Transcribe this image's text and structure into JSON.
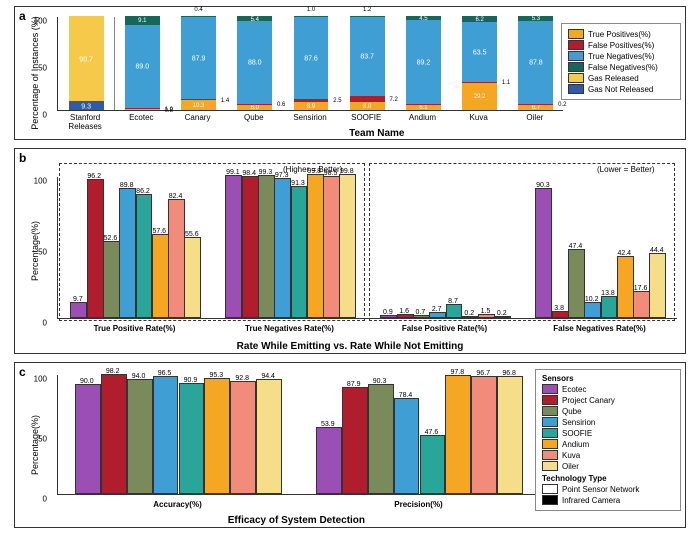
{
  "palette": {
    "tp": "#f5a623",
    "fp": "#b01e2e",
    "tn": "#3f9fd4",
    "fn": "#16675a",
    "gas": "#f7c94a",
    "nogas": "#2e5aa8"
  },
  "sensors": [
    {
      "key": "ecotec",
      "name": "Ecotec",
      "color": "#9b4fb5",
      "type": "point"
    },
    {
      "key": "canary",
      "name": "Project Canary",
      "color": "#b01e2e",
      "type": "point"
    },
    {
      "key": "qube",
      "name": "Qube",
      "color": "#7a8a5a",
      "type": "point"
    },
    {
      "key": "sensirion",
      "name": "Sensirion",
      "color": "#3f9fd4",
      "type": "point"
    },
    {
      "key": "soofie",
      "name": "SOOFIE",
      "color": "#2aa59a",
      "type": "point"
    },
    {
      "key": "andium",
      "name": "Andium",
      "color": "#f5a623",
      "type": "infrared"
    },
    {
      "key": "kuva",
      "name": "Kuva",
      "color": "#f28c7a",
      "type": "infrared"
    },
    {
      "key": "oiler",
      "name": "Oiler",
      "color": "#f5dd8a",
      "type": "infrared"
    }
  ],
  "panelA": {
    "ytitle": "Percentage of Instances (%)",
    "xtitle": "Team Name",
    "ylim": [
      0,
      100
    ],
    "ytick_step": 50,
    "stanford": {
      "label": "Stanford\nReleases",
      "gas": 90.7,
      "nogas": 9.3
    },
    "teams": [
      {
        "name": "Ecotec",
        "tp": 0.8,
        "fp": 1.0,
        "tn": 89.0,
        "fn": 9.1
      },
      {
        "name": "Canary",
        "tp": 10.3,
        "fp": 1.4,
        "tn": 87.9,
        "fn": 0.4
      },
      {
        "name": "Qube",
        "tp": 6.0,
        "fp": 0.6,
        "tn": 88.0,
        "fn": 5.4
      },
      {
        "name": "Sensirion",
        "tp": 8.9,
        "fp": 2.5,
        "tn": 87.6,
        "fn": 1.0
      },
      {
        "name": "SOOFIE",
        "tp": 8.0,
        "fp": 7.2,
        "tn": 83.7,
        "fn": 1.2
      },
      {
        "name": "Andium",
        "tp": 6.1,
        "fp": 0.1,
        "tn": 89.2,
        "fn": 4.5
      },
      {
        "name": "Kuva",
        "tp": 29.2,
        "fp": 1.1,
        "tn": 63.5,
        "fn": 6.2
      },
      {
        "name": "Oiler",
        "tp": 6.7,
        "fp": 0.2,
        "tn": 87.8,
        "fn": 5.3
      }
    ],
    "legend": [
      {
        "label": "True Positives(%)",
        "color": "#f5a623"
      },
      {
        "label": "False Positives(%)",
        "color": "#b01e2e"
      },
      {
        "label": "True Negatives(%)",
        "color": "#3f9fd4"
      },
      {
        "label": "False Negatives(%)",
        "color": "#16675a"
      },
      {
        "label": "Gas Released",
        "color": "#f7c94a"
      },
      {
        "label": "Gas Not Released",
        "color": "#2e5aa8"
      }
    ]
  },
  "panelB": {
    "ytitle": "Percentage(%)",
    "xtitle": "Rate While Emitting vs. Rate While Not Emitting",
    "ylim": [
      0,
      100
    ],
    "ytick_step": 50,
    "notes": {
      "left": "(Higher = Better)",
      "right": "(Lower = Better)"
    },
    "groups": [
      {
        "label": "True Positive Rate(%)",
        "values": [
          9.7,
          96.2,
          52.6,
          89.8,
          86.2,
          57.6,
          82.4,
          55.6
        ]
      },
      {
        "label": "True Negatives Rate(%)",
        "values": [
          99.1,
          98.4,
          99.3,
          97.3,
          91.3,
          99.8,
          98.5,
          99.8
        ]
      },
      {
        "label": "False Positive Rate(%)",
        "values": [
          0.9,
          1.6,
          0.7,
          2.7,
          8.7,
          0.2,
          1.5,
          0.2
        ]
      },
      {
        "label": "False Negatives Rate(%)",
        "values": [
          90.3,
          3.8,
          47.4,
          10.2,
          13.8,
          42.4,
          17.6,
          44.4
        ]
      }
    ]
  },
  "panelC": {
    "ytitle": "Percentage(%)",
    "xtitle": "Efficacy of System Detection",
    "ylim": [
      0,
      100
    ],
    "ytick_step": 50,
    "groups": [
      {
        "label": "Accuracy(%)",
        "values": [
          90.0,
          98.2,
          94.0,
          96.5,
          90.9,
          95.3,
          92.8,
          94.4
        ]
      },
      {
        "label": "Precision(%)",
        "values": [
          53.9,
          87.9,
          90.3,
          78.4,
          47.6,
          97.8,
          96.7,
          96.8
        ]
      }
    ],
    "legend_title": "Sensors",
    "tech_title": "Technology Type",
    "tech": [
      {
        "label": "Point Sensor Network",
        "pattern": "hatch"
      },
      {
        "label": "Infrared Camera",
        "pattern": "solid"
      }
    ]
  }
}
